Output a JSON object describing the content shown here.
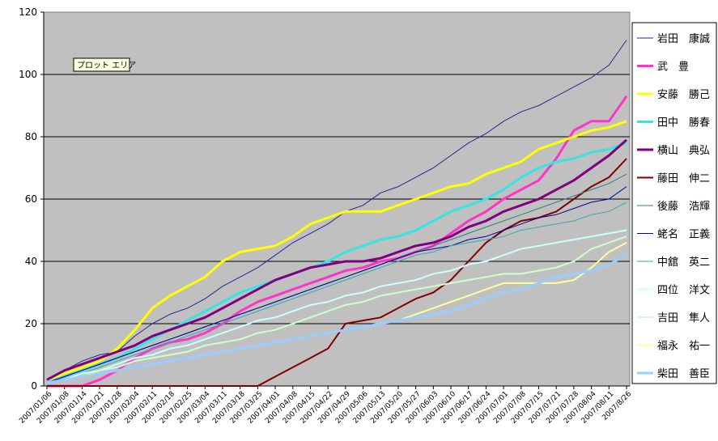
{
  "chart_data": {
    "type": "line",
    "title": "",
    "xlabel": "",
    "ylabel": "",
    "ylim": [
      0,
      120
    ],
    "yticks": [
      "0",
      "20",
      "40",
      "60",
      "80",
      "100",
      "120"
    ],
    "grid": "horizontal",
    "legend_position": "right",
    "plot_area_tooltip": "プロット エリア",
    "x": [
      "2007/01/06",
      "2007/01/08",
      "2007/01/14",
      "2007/01/21",
      "2007/01/28",
      "2007/02/04",
      "2007/02/11",
      "2007/02/18",
      "2007/02/25",
      "2007/03/04",
      "2007/03/11",
      "2007/03/18",
      "2007/03/25",
      "2007/04/01",
      "2007/04/08",
      "2007/04/15",
      "2007/04/22",
      "2007/04/29",
      "2007/05/06",
      "2007/05/13",
      "2007/05/20",
      "2007/05/27",
      "2007/06/03",
      "2007/06/10",
      "2007/06/17",
      "2007/06/24",
      "2007/07/01",
      "2007/07/08",
      "2007/07/15",
      "2007/07/21",
      "2007/07/28",
      "2007/08/04",
      "2007/08/11",
      "2007/8/26"
    ],
    "series": [
      {
        "name": "岩田　康誠",
        "color": "#1f2a8c",
        "width": 1,
        "values": [
          2,
          5,
          8,
          10,
          11,
          16,
          20,
          23,
          25,
          28,
          32,
          35,
          38,
          42,
          46,
          49,
          52,
          56,
          58,
          62,
          64,
          67,
          70,
          74,
          78,
          81,
          85,
          88,
          90,
          93,
          96,
          99,
          103,
          111
        ]
      },
      {
        "name": "武　豊",
        "color": "#ff33cc",
        "width": 3,
        "values": [
          0,
          0,
          0,
          2,
          5,
          9,
          12,
          14,
          15,
          17,
          20,
          24,
          27,
          29,
          31,
          33,
          35,
          37,
          38,
          40,
          41,
          43,
          45,
          49,
          53,
          56,
          60,
          63,
          66,
          73,
          82,
          85,
          85,
          93
        ]
      },
      {
        "name": "安藤　勝己",
        "color": "#ffff00",
        "width": 3,
        "values": [
          2,
          4,
          6,
          8,
          12,
          18,
          25,
          29,
          32,
          35,
          40,
          43,
          44,
          45,
          48,
          52,
          54,
          56,
          56,
          56,
          58,
          60,
          62,
          64,
          65,
          68,
          70,
          72,
          76,
          78,
          80,
          82,
          83,
          85
        ]
      },
      {
        "name": "田中　勝春",
        "color": "#33e6e6",
        "width": 3,
        "values": [
          1,
          3,
          5,
          7,
          9,
          12,
          15,
          18,
          21,
          24,
          27,
          30,
          32,
          34,
          36,
          38,
          40,
          43,
          45,
          47,
          48,
          50,
          53,
          56,
          58,
          60,
          63,
          67,
          70,
          72,
          73,
          75,
          76,
          78
        ]
      },
      {
        "name": "横山　典弘",
        "color": "#800080",
        "width": 3,
        "values": [
          2,
          5,
          7,
          9,
          11,
          13,
          16,
          18,
          20,
          22,
          25,
          28,
          31,
          34,
          36,
          38,
          39,
          40,
          40,
          41,
          43,
          45,
          46,
          48,
          51,
          53,
          56,
          58,
          60,
          63,
          66,
          70,
          74,
          79
        ]
      },
      {
        "name": "藤田　伸二",
        "color": "#800000",
        "width": 2,
        "values": [
          0,
          0,
          0,
          0,
          0,
          0,
          0,
          0,
          0,
          0,
          0,
          0,
          0,
          3,
          6,
          9,
          12,
          20,
          21,
          22,
          25,
          28,
          30,
          34,
          40,
          46,
          50,
          53,
          54,
          56,
          60,
          64,
          67,
          73
        ]
      },
      {
        "name": "後藤　浩輝",
        "color": "#2f7f7f",
        "width": 1,
        "values": [
          1,
          3,
          5,
          7,
          9,
          11,
          13,
          15,
          17,
          19,
          21,
          23,
          25,
          27,
          29,
          31,
          33,
          35,
          37,
          39,
          41,
          43,
          45,
          47,
          49,
          51,
          53,
          55,
          57,
          59,
          61,
          63,
          65,
          68
        ]
      },
      {
        "name": "蛯名　正義",
        "color": "#000099",
        "width": 1,
        "values": [
          1,
          3,
          5,
          7,
          9,
          11,
          13,
          15,
          17,
          19,
          21,
          23,
          25,
          27,
          29,
          31,
          33,
          35,
          37,
          39,
          41,
          43,
          44,
          45,
          47,
          48,
          50,
          52,
          54,
          55,
          57,
          59,
          60,
          64
        ]
      },
      {
        "name": "中舘　英二",
        "color": "#33aaaa",
        "width": 1,
        "values": [
          1,
          2,
          4,
          6,
          8,
          10,
          12,
          14,
          16,
          18,
          20,
          22,
          24,
          26,
          28,
          30,
          32,
          34,
          36,
          38,
          40,
          42,
          43,
          45,
          46,
          47,
          48,
          50,
          51,
          52,
          53,
          55,
          56,
          59
        ]
      },
      {
        "name": "四位　洋文",
        "color": "#ccffff",
        "width": 2,
        "values": [
          1,
          2,
          4,
          5,
          7,
          9,
          10,
          12,
          13,
          15,
          17,
          19,
          21,
          22,
          24,
          26,
          27,
          29,
          30,
          32,
          33,
          34,
          36,
          37,
          39,
          40,
          42,
          44,
          45,
          46,
          47,
          48,
          49,
          50
        ]
      },
      {
        "name": "吉田　隼人",
        "color": "#ccffcc",
        "width": 2,
        "values": [
          1,
          2,
          3,
          5,
          6,
          8,
          9,
          10,
          11,
          13,
          14,
          15,
          17,
          18,
          20,
          22,
          24,
          26,
          27,
          29,
          30,
          31,
          32,
          33,
          34,
          35,
          36,
          36,
          37,
          38,
          40,
          44,
          46,
          48
        ]
      },
      {
        "name": "福永　祐一",
        "color": "#ffff99",
        "width": 2,
        "values": [
          1,
          2,
          3,
          4,
          5,
          6,
          7,
          8,
          9,
          10,
          11,
          12,
          13,
          14,
          15,
          16,
          17,
          18,
          19,
          20,
          21,
          23,
          25,
          27,
          29,
          31,
          33,
          33,
          33,
          33,
          34,
          38,
          43,
          46
        ]
      },
      {
        "name": "柴田　善臣",
        "color": "#99ccff",
        "width": 3,
        "values": [
          1,
          2,
          3,
          4,
          5,
          6,
          7,
          8,
          9,
          10,
          11,
          12,
          13,
          14,
          15,
          16,
          17,
          18,
          19,
          20,
          21,
          22,
          23,
          24,
          26,
          28,
          30,
          31,
          33,
          35,
          36,
          37,
          39,
          42
        ]
      }
    ]
  }
}
